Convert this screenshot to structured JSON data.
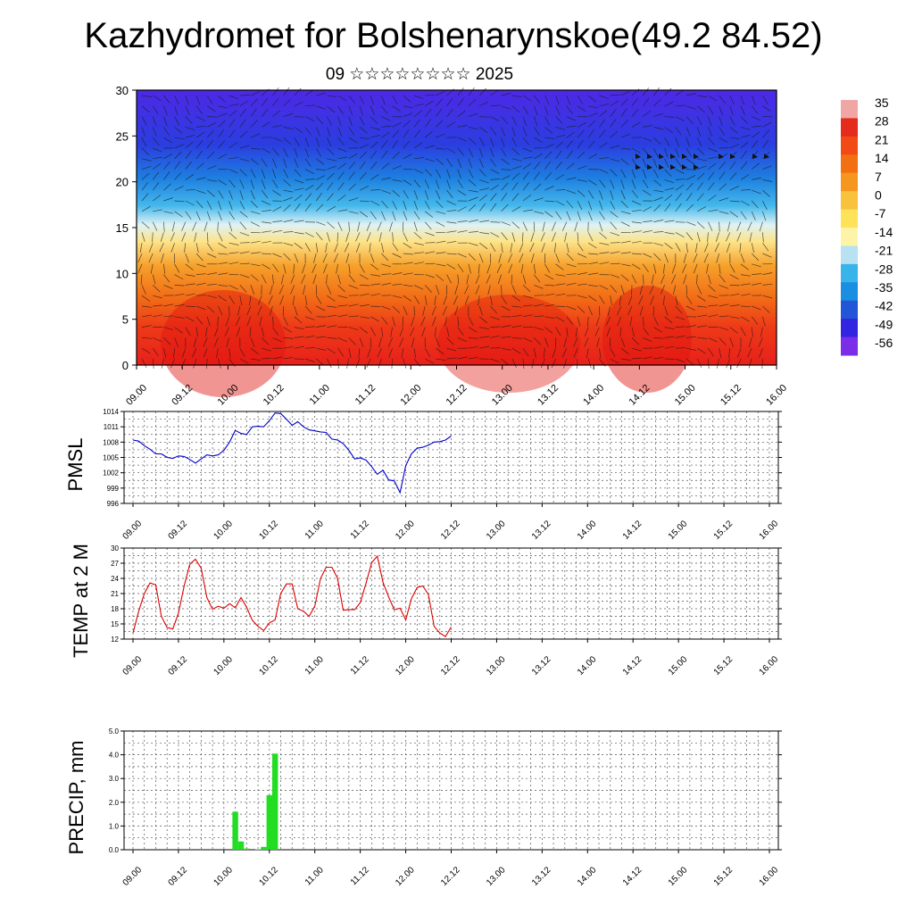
{
  "header": {
    "title": "Kazhydromet for Bolshenarynskoe(49.2 84.52)",
    "subtitle": "09 ☆☆☆☆☆☆☆☆ 2025"
  },
  "colorbar": {
    "labels": [
      "35",
      "28",
      "21",
      "14",
      "7",
      "0",
      "-7",
      "-14",
      "-21",
      "-28",
      "-35",
      "-42",
      "-49",
      "-56"
    ],
    "colors": [
      "#f1a6a6",
      "#e52b1c",
      "#f14a14",
      "#f37012",
      "#f5961f",
      "#f8c23c",
      "#fde25a",
      "#fef4a8",
      "#b8e2f2",
      "#37b4ea",
      "#1a8ee0",
      "#2355d8",
      "#3224e0",
      "#7b2ee8"
    ]
  },
  "chart_data": [
    {
      "type": "heatmap",
      "name": "upper-air",
      "x_ticks": [
        "09.00",
        "09.12",
        "10.00",
        "10.12",
        "11.00",
        "11.12",
        "12.00",
        "12.12",
        "13.00",
        "13.12",
        "14.00",
        "14.12",
        "15.00",
        "15.12",
        "16.00"
      ],
      "ylim": [
        0,
        30
      ],
      "y_ticks": [
        "0",
        "5",
        "10",
        "15",
        "20",
        "25",
        "30"
      ],
      "color_scale": [
        -56,
        35
      ]
    },
    {
      "type": "line",
      "ylabel": "PMSL",
      "ylim": [
        996,
        1014
      ],
      "y_ticks": [
        "996",
        "999",
        "1002",
        "1005",
        "1008",
        "1011",
        "1014"
      ],
      "x_ticks": [
        "09.00",
        "09.12",
        "10.00",
        "10.12",
        "11.00",
        "11.12",
        "12.00",
        "12.12",
        "13.00",
        "13.12",
        "14.00",
        "14.12",
        "15.00",
        "15.12",
        "16.00"
      ],
      "x_step_hours": 3,
      "color": "#0000cc",
      "values": [
        1008.4,
        1008.2,
        1007.3,
        1006.6,
        1005.7,
        1005.7,
        1005.0,
        1004.8,
        1005.3,
        1005.2,
        1004.6,
        1003.9,
        1004.7,
        1005.5,
        1005.3,
        1005.5,
        1006.4,
        1008.0,
        1010.3,
        1009.7,
        1009.5,
        1011.0,
        1011.1,
        1011.0,
        1012.2,
        1013.7,
        1013.6,
        1012.5,
        1011.3,
        1012.0,
        1011.0,
        1010.4,
        1010.2,
        1010.0,
        1009.9,
        1008.6,
        1008.4,
        1007.7,
        1006.4,
        1004.7,
        1004.9,
        1004.5,
        1003.2,
        1001.7,
        1002.5,
        1000.6,
        1000.4,
        998.1,
        1003.4,
        1005.7,
        1006.8,
        1007.0,
        1007.4,
        1008.0,
        1008.1,
        1008.4,
        1009.2
      ]
    },
    {
      "type": "line",
      "ylabel": "TEMP at 2 M",
      "ylim": [
        12,
        30
      ],
      "y_ticks": [
        "12",
        "15",
        "18",
        "21",
        "24",
        "27",
        "30"
      ],
      "x_ticks": [
        "09.00",
        "09.12",
        "10.00",
        "10.12",
        "11.00",
        "11.12",
        "12.00",
        "12.12",
        "13.00",
        "13.12",
        "14.00",
        "14.12",
        "15.00",
        "15.12",
        "16.00"
      ],
      "x_step_hours": 3,
      "color": "#dd0000",
      "values": [
        13.2,
        17.5,
        21.0,
        23.1,
        22.7,
        16.5,
        14.3,
        14.0,
        17.1,
        22.5,
        26.8,
        27.8,
        26.0,
        20.2,
        17.9,
        18.5,
        18.1,
        19.0,
        18.2,
        20.2,
        18.3,
        15.7,
        14.5,
        13.7,
        15.2,
        15.8,
        21.0,
        22.9,
        22.9,
        18.0,
        17.5,
        16.5,
        18.5,
        24.0,
        26.2,
        26.2,
        24.0,
        17.7,
        17.8,
        17.8,
        19.2,
        23.0,
        27.1,
        28.4,
        23.2,
        20.3,
        17.8,
        18.1,
        15.8,
        20.0,
        22.2,
        22.5,
        20.8,
        14.5,
        13.2,
        12.5,
        14.4
      ]
    },
    {
      "type": "bar",
      "ylabel": "PRECIP, mm",
      "ylim": [
        0,
        5
      ],
      "y_ticks": [
        "0.0",
        "1.0",
        "2.0",
        "3.0",
        "4.0",
        "5.0"
      ],
      "x_ticks": [
        "09.00",
        "09.12",
        "10.00",
        "10.12",
        "11.00",
        "11.12",
        "12.00",
        "12.12",
        "13.00",
        "13.12",
        "14.00",
        "14.12",
        "15.00",
        "15.12",
        "16.00"
      ],
      "x_step_hours": 3,
      "color": "#22dd22",
      "values": [
        0,
        0,
        0,
        0,
        0,
        0,
        0,
        0,
        0,
        0,
        0,
        0,
        0,
        0,
        0,
        0,
        0,
        0,
        1.6,
        0.35,
        0.05,
        0,
        0.02,
        0.12,
        2.3,
        4.05,
        0,
        0,
        0,
        0,
        0,
        0,
        0,
        0,
        0,
        0,
        0,
        0,
        0,
        0,
        0,
        0,
        0,
        0,
        0,
        0,
        0,
        0,
        0,
        0,
        0,
        0,
        0,
        0,
        0,
        0,
        0
      ]
    }
  ]
}
